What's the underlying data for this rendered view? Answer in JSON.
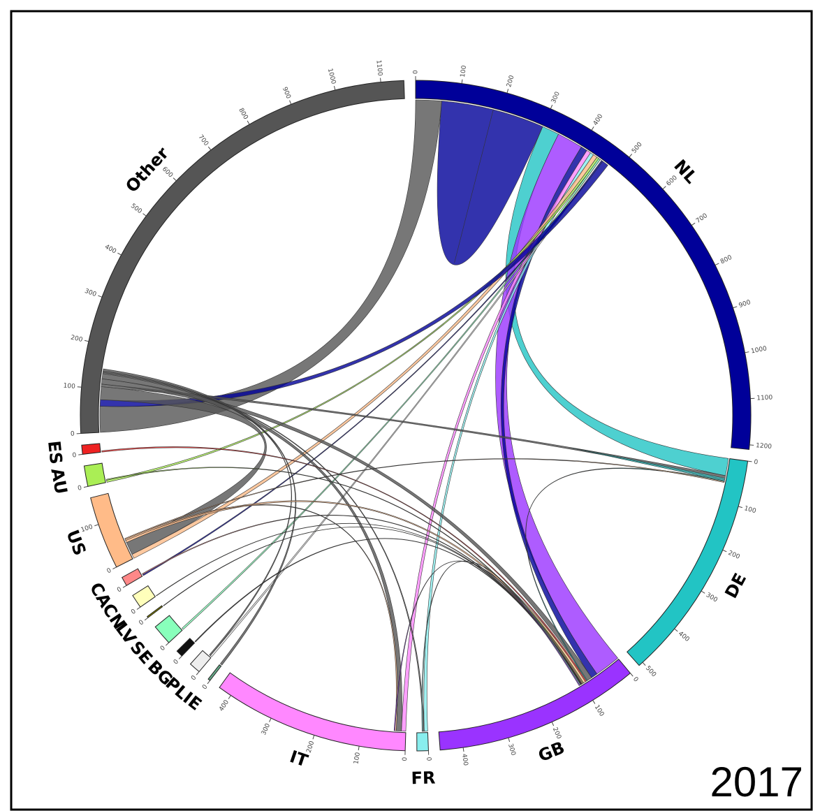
{
  "chart_data": {
    "type": "chord",
    "title": "2017",
    "segments": [
      {
        "name": "NL",
        "value": 1210,
        "color": "#000099",
        "ticks": [
          0,
          100,
          200,
          300,
          400,
          500,
          600,
          700,
          800,
          900,
          1000,
          1100,
          1200
        ]
      },
      {
        "name": "DE",
        "value": 510,
        "color": "#22c4c4",
        "ticks": [
          0,
          100,
          200,
          300,
          400,
          500
        ]
      },
      {
        "name": "GB",
        "value": 450,
        "color": "#9a33ff",
        "ticks": [
          0,
          100,
          200,
          300,
          400
        ]
      },
      {
        "name": "FR",
        "value": 25,
        "color": "#88eeee",
        "ticks": [
          0
        ]
      },
      {
        "name": "IT",
        "value": 430,
        "color": "#ff88ff",
        "ticks": [
          0,
          100,
          200,
          300,
          400
        ]
      },
      {
        "name": "IE",
        "value": 5,
        "color": "#66aa88",
        "ticks": [
          0
        ]
      },
      {
        "name": "PL",
        "value": 25,
        "color": "#eeeeee",
        "ticks": [
          0
        ]
      },
      {
        "name": "BG",
        "value": 15,
        "color": "#111111",
        "ticks": [
          0
        ]
      },
      {
        "name": "SE",
        "value": 45,
        "color": "#88ffbb",
        "ticks": [
          0
        ]
      },
      {
        "name": "LV",
        "value": 3,
        "color": "#888800",
        "ticks": [
          0
        ]
      },
      {
        "name": "CN",
        "value": 30,
        "color": "#ffffbb",
        "ticks": [
          0
        ]
      },
      {
        "name": "CA",
        "value": 20,
        "color": "#ff8888",
        "ticks": [
          0
        ]
      },
      {
        "name": "US",
        "value": 160,
        "color": "#ffbb88",
        "ticks": [
          0,
          100
        ]
      },
      {
        "name": "AU",
        "value": 45,
        "color": "#aaee55",
        "ticks": [
          0
        ]
      },
      {
        "name": "ES",
        "value": 20,
        "color": "#ee2222",
        "ticks": [
          0
        ]
      },
      {
        "name": "Other",
        "value": 1150,
        "color": "#555555",
        "ticks": [
          0,
          100,
          200,
          300,
          400,
          500,
          600,
          700,
          800,
          900,
          1000,
          1100
        ]
      }
    ],
    "flows": [
      {
        "source": "Other",
        "target": "NL",
        "value": 60
      },
      {
        "source": "NL",
        "target": "NL",
        "value": 120
      },
      {
        "source": "DE",
        "target": "NL",
        "value": 40
      },
      {
        "source": "GB",
        "target": "NL",
        "value": 60
      },
      {
        "source": "NL",
        "target": "GB",
        "value": 15
      },
      {
        "source": "IT",
        "target": "NL",
        "value": 10
      },
      {
        "source": "FR",
        "target": "NL",
        "value": 8
      },
      {
        "source": "US",
        "target": "NL",
        "value": 10
      },
      {
        "source": "AU",
        "target": "NL",
        "value": 5
      },
      {
        "source": "SE",
        "target": "NL",
        "value": 4
      },
      {
        "source": "PL",
        "target": "NL",
        "value": 4
      },
      {
        "source": "NL",
        "target": "CA",
        "value": 3
      },
      {
        "source": "NL",
        "target": "Other",
        "value": 15
      },
      {
        "source": "Other",
        "target": "US",
        "value": 30
      },
      {
        "source": "Other",
        "target": "DE",
        "value": 6
      },
      {
        "source": "Other",
        "target": "GB",
        "value": 12
      },
      {
        "source": "Other",
        "target": "IT",
        "value": 12
      },
      {
        "source": "Other",
        "target": "FR",
        "value": 3
      },
      {
        "source": "Other",
        "target": "PL",
        "value": 3
      },
      {
        "source": "Other",
        "target": "IE",
        "value": 5
      },
      {
        "source": "DE",
        "target": "DE",
        "value": 3
      },
      {
        "source": "DE",
        "target": "GB",
        "value": 2
      },
      {
        "source": "ES",
        "target": "GB",
        "value": 3
      },
      {
        "source": "US",
        "target": "GB",
        "value": 5
      },
      {
        "source": "US",
        "target": "IT",
        "value": 3
      },
      {
        "source": "US",
        "target": "DE",
        "value": 2
      },
      {
        "source": "AU",
        "target": "GB",
        "value": 2
      },
      {
        "source": "CA",
        "target": "GB",
        "value": 2
      },
      {
        "source": "CN",
        "target": "GB",
        "value": 1
      },
      {
        "source": "LV",
        "target": "GB",
        "value": 1
      },
      {
        "source": "BG",
        "target": "GB",
        "value": 2
      },
      {
        "source": "FR",
        "target": "GB",
        "value": 2
      },
      {
        "source": "GB",
        "target": "IT",
        "value": 2
      }
    ]
  }
}
